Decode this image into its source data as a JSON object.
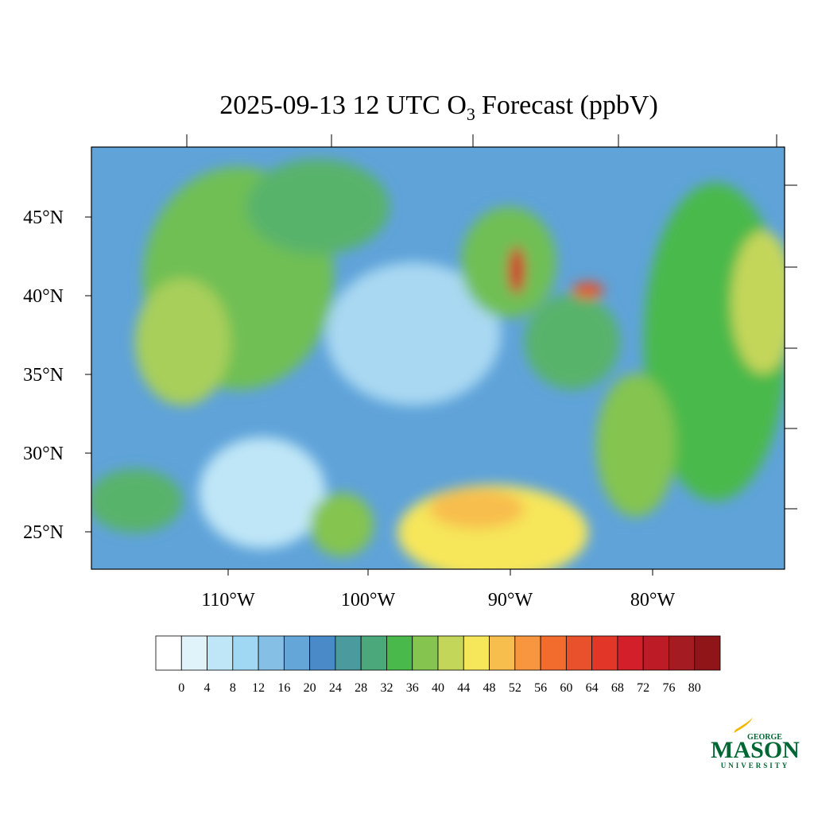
{
  "title": {
    "main": "2025-09-13 12 UTC O",
    "subscript": "3",
    "rest": "Forecast (ppbV)"
  },
  "latitude_labels": [
    "45°N",
    "40°N",
    "35°N",
    "30°N",
    "25°N"
  ],
  "longitude_labels": [
    "110°W",
    "100°W",
    "90°W",
    "80°W"
  ],
  "colorbar": {
    "colors": [
      "#ffffff",
      "#e0f3fb",
      "#bfe6f7",
      "#a0d8f3",
      "#85bfe6",
      "#65a6d8",
      "#4a8ac9",
      "#4a9a9e",
      "#4aa87a",
      "#4ab94c",
      "#84c44f",
      "#c4d65a",
      "#f6e65a",
      "#f8be4d",
      "#f7963f",
      "#f26c2e",
      "#e9512c",
      "#e23728",
      "#d21f2a",
      "#bd1b26",
      "#a51b22",
      "#8f1519"
    ],
    "labels": [
      0,
      4,
      8,
      12,
      16,
      20,
      24,
      28,
      32,
      36,
      40,
      44,
      48,
      52,
      56,
      60,
      64,
      68,
      72,
      76,
      80
    ]
  },
  "logo": {
    "top": "GEORGE",
    "main": "MASON",
    "bottom": "UNIVERSITY"
  }
}
